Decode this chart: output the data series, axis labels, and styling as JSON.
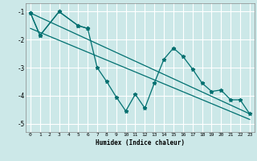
{
  "xlabel": "Humidex (Indice chaleur)",
  "background_color": "#cce8e8",
  "grid_color": "#ffffff",
  "line_color": "#007070",
  "xlim": [
    -0.5,
    23.5
  ],
  "ylim": [
    -5.3,
    -0.7
  ],
  "xticks": [
    0,
    1,
    2,
    3,
    4,
    5,
    6,
    7,
    8,
    9,
    10,
    11,
    12,
    13,
    14,
    15,
    16,
    17,
    18,
    19,
    20,
    21,
    22,
    23
  ],
  "yticks": [
    -5,
    -4,
    -3,
    -2,
    -1
  ],
  "line1_x": [
    0,
    1,
    3,
    5,
    6,
    7,
    8,
    9,
    10,
    11,
    12,
    13,
    14,
    15,
    16,
    17,
    18,
    19,
    20,
    21,
    22,
    23
  ],
  "line1_y": [
    -1.05,
    -1.85,
    -1.0,
    -1.5,
    -1.6,
    -3.0,
    -3.5,
    -4.05,
    -4.55,
    -3.95,
    -4.45,
    -3.55,
    -2.7,
    -2.3,
    -2.6,
    -3.05,
    -3.55,
    -3.85,
    -3.8,
    -4.15,
    -4.15,
    -4.65
  ],
  "line2_x": [
    0,
    1,
    3,
    5,
    6
  ],
  "line2_y": [
    -1.05,
    -1.85,
    -1.0,
    -1.5,
    -1.6
  ],
  "line3_x": [
    0,
    23
  ],
  "line3_y": [
    -1.05,
    -4.65
  ],
  "line4_x": [
    0,
    23
  ],
  "line4_y": [
    -1.6,
    -4.85
  ]
}
